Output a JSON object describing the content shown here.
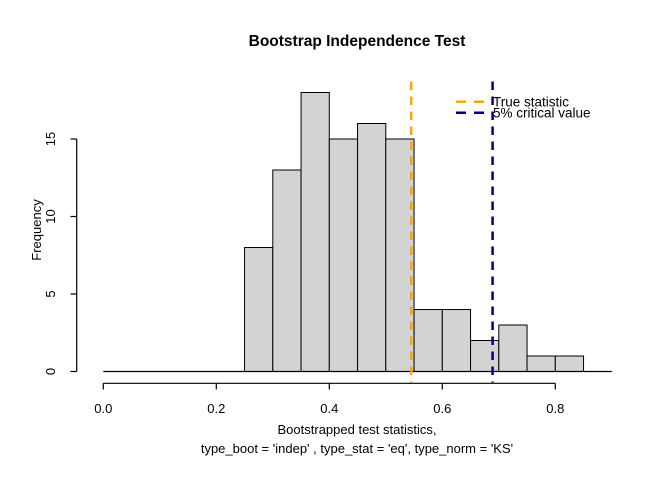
{
  "chart_data": {
    "type": "bar",
    "subtype": "histogram",
    "title": "Bootstrap Independence Test",
    "ylabel": "Frequency",
    "xlabel_lines": [
      "Bootstrapped test statistics,",
      "type_boot = 'indep' , type_stat = 'eq', type_norm = 'KS'"
    ],
    "bins": {
      "start": 0.25,
      "width": 0.05,
      "counts": [
        8,
        13,
        18,
        15,
        16,
        15,
        4,
        4,
        2,
        3,
        1,
        1
      ]
    },
    "baseline_extent": [
      0.0,
      0.9
    ],
    "xlim": [
      0.0,
      0.9
    ],
    "ylim": [
      0,
      18
    ],
    "grid": false,
    "x_ticks": {
      "values": [
        0.0,
        0.2,
        0.4,
        0.6,
        0.8
      ],
      "labels": [
        "0.0",
        "0.2",
        "0.4",
        "0.6",
        "0.8"
      ]
    },
    "y_ticks": {
      "values": [
        0,
        5,
        10,
        15
      ],
      "labels": [
        "0",
        "5",
        "10",
        "15"
      ]
    },
    "bar_fill": "#d3d3d3",
    "bar_stroke": "#000000",
    "vlines": [
      {
        "name": "true-statistic-line",
        "value": 0.545,
        "color": "#ffa500",
        "style": "dashed",
        "label": "True statistic"
      },
      {
        "name": "critical-value-line",
        "value": 0.689,
        "color": "#000080",
        "style": "dashed",
        "label": "5% critical value"
      }
    ],
    "legend": {
      "position": "top-right",
      "entries": [
        {
          "label": "True statistic",
          "color": "#ffa500",
          "line": "dashed"
        },
        {
          "label": "5% critical value",
          "color": "#000080",
          "line": "dashed"
        }
      ]
    }
  }
}
